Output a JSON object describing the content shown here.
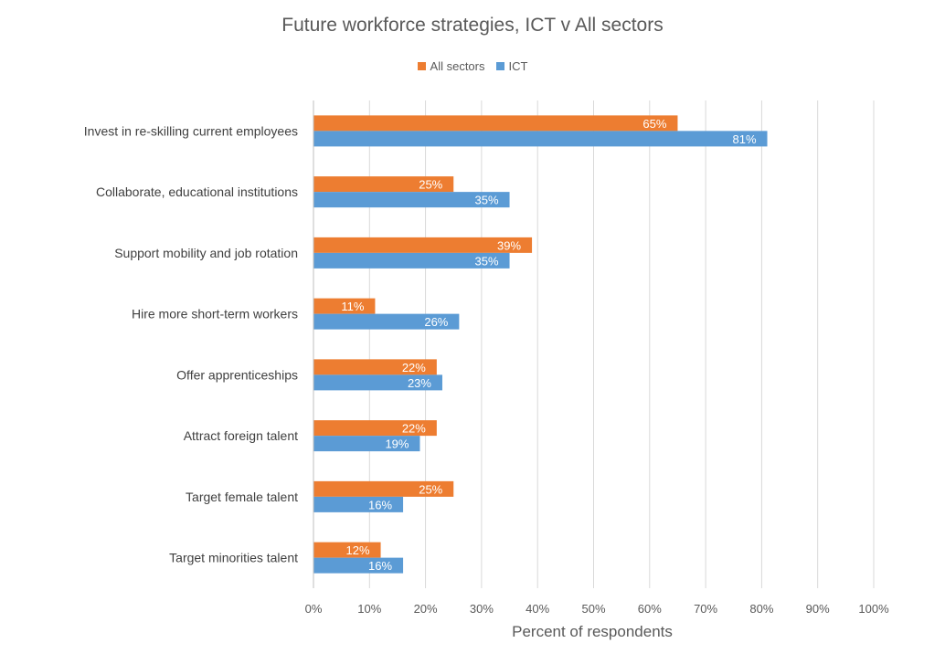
{
  "chart_data": {
    "type": "bar",
    "orientation": "horizontal",
    "title": "Future workforce strategies, ICT v All sectors",
    "xlabel": "Percent of respondents",
    "ylabel": "",
    "xlim": [
      0,
      100
    ],
    "x_ticks": [
      "0%",
      "10%",
      "20%",
      "30%",
      "40%",
      "50%",
      "60%",
      "70%",
      "80%",
      "90%",
      "100%"
    ],
    "grid": true,
    "legend_position": "top-center",
    "categories": [
      "Invest in re-skilling current employees",
      "Collaborate, educational institutions",
      "Support mobility and job rotation",
      "Hire more short-term workers",
      "Offer apprenticeships",
      "Attract foreign talent",
      "Target female talent",
      "Target minorities talent"
    ],
    "series": [
      {
        "name": "All sectors",
        "color": "#ED7D31",
        "values": [
          65,
          25,
          39,
          11,
          22,
          22,
          25,
          12
        ],
        "labels": [
          "65%",
          "25%",
          "39%",
          "11%",
          "22%",
          "22%",
          "25%",
          "12%"
        ]
      },
      {
        "name": "ICT",
        "color": "#5B9BD5",
        "values": [
          81,
          35,
          35,
          26,
          23,
          19,
          16,
          16
        ],
        "labels": [
          "81%",
          "35%",
          "35%",
          "26%",
          "23%",
          "19%",
          "16%",
          "16%"
        ]
      }
    ]
  }
}
